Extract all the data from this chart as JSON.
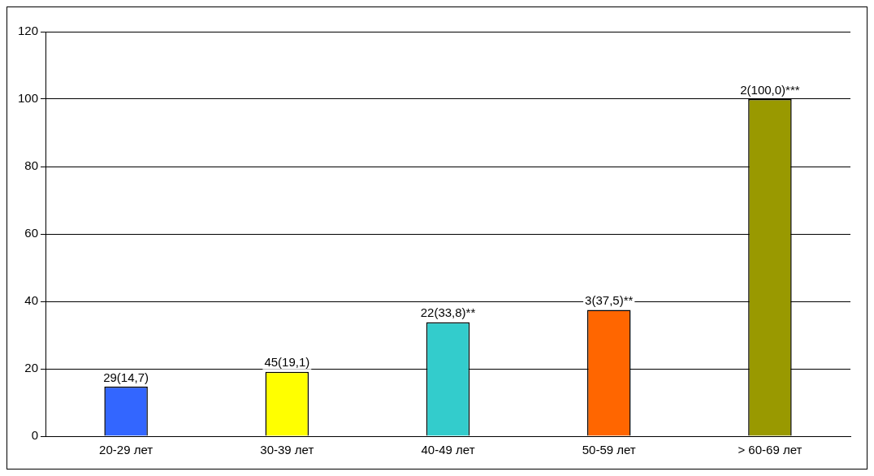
{
  "chart_data": {
    "type": "bar",
    "categories": [
      "20-29 лет",
      "30-39 лет",
      "40-49 лет",
      "50-59 лет",
      "> 60-69 лет"
    ],
    "values": [
      14.7,
      19.1,
      33.8,
      37.5,
      100.0
    ],
    "colors": [
      "#3366ff",
      "#ffff00",
      "#33cccc",
      "#ff6600",
      "#999900"
    ],
    "value_labels": [
      "29(14,7)",
      "45(19,1)",
      "22(33,8)**",
      "3(37,5)**",
      "2(100,0)***"
    ],
    "ylim": [
      0,
      120
    ],
    "yticks": [
      0,
      20,
      40,
      60,
      80,
      100,
      120
    ],
    "grid": "y",
    "legend": false
  }
}
